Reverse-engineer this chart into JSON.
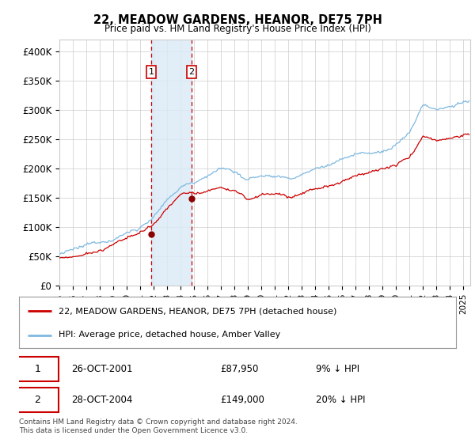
{
  "title": "22, MEADOW GARDENS, HEANOR, DE75 7PH",
  "subtitle": "Price paid vs. HM Land Registry's House Price Index (HPI)",
  "ylabel_ticks": [
    "£0",
    "£50K",
    "£100K",
    "£150K",
    "£200K",
    "£250K",
    "£300K",
    "£350K",
    "£400K"
  ],
  "ytick_values": [
    0,
    50000,
    100000,
    150000,
    200000,
    250000,
    300000,
    350000,
    400000
  ],
  "ylim": [
    0,
    420000
  ],
  "xlim_start": 1995.0,
  "xlim_end": 2025.5,
  "sale1_date": 2001.82,
  "sale1_price": 87950,
  "sale1_label": "1",
  "sale2_date": 2004.82,
  "sale2_price": 149000,
  "sale2_label": "2",
  "hpi_color": "#7fb9e0",
  "price_color": "#cc0000",
  "marker_color": "#8b0000",
  "shade_color": "#daeaf7",
  "annotation_box_color": "#cc0000",
  "legend_label_red": "22, MEADOW GARDENS, HEANOR, DE75 7PH (detached house)",
  "legend_label_blue": "HPI: Average price, detached house, Amber Valley",
  "table_row1": [
    "1",
    "26-OCT-2001",
    "£87,950",
    "9% ↓ HPI"
  ],
  "table_row2": [
    "2",
    "28-OCT-2004",
    "£149,000",
    "20% ↓ HPI"
  ],
  "footer": "Contains HM Land Registry data © Crown copyright and database right 2024.\nThis data is licensed under the Open Government Licence v3.0.",
  "background_color": "#ffffff",
  "grid_color": "#cccccc"
}
